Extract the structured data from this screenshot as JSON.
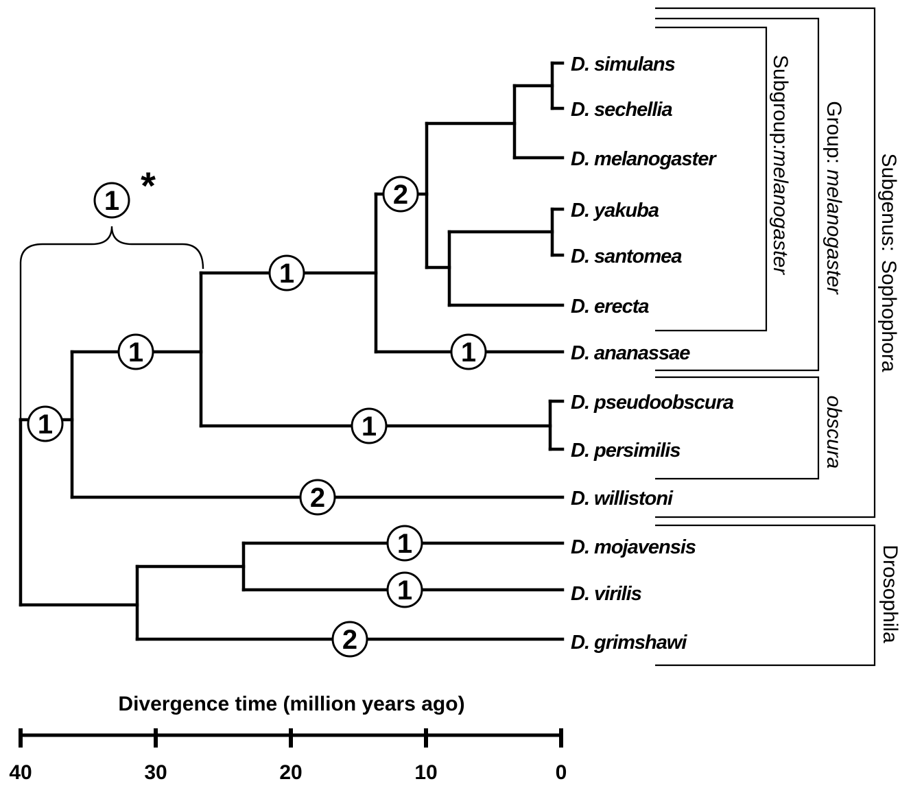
{
  "axis": {
    "title": "Divergence time (million years ago)",
    "ticks": [
      40,
      30,
      20,
      10,
      0
    ]
  },
  "taxa": [
    "D. simulans",
    "D. sechellia",
    "D. melanogaster",
    "D. yakuba",
    "D. santomea",
    "D. erecta",
    "D. ananassae",
    "D. pseudoobscura",
    "D. persimilis",
    "D. willistoni",
    "D. mojavensis",
    "D. virilis",
    "D. grimshawi"
  ],
  "node_labels": {
    "bracket": "1",
    "bracket_mark": "*",
    "root": "1",
    "sophophora_inner": "1",
    "melanogaster_obscura": "1",
    "melanogaster_core": "2",
    "ananassae": "1",
    "obscura_group": "1",
    "willistoni": "2",
    "mojavensis": "1",
    "virilis": "1",
    "grimshawi": "2"
  },
  "groups": {
    "subgroup_prefix": "Subgroup:",
    "subgroup_name": "melanogaster",
    "group_prefix": "Group:",
    "group_name": "melanogaster",
    "obscura": "obscura",
    "subgenus_prefix": "Subgenus:",
    "subgenus_name": "Sophophora",
    "drosophila": "Drosophila"
  }
}
